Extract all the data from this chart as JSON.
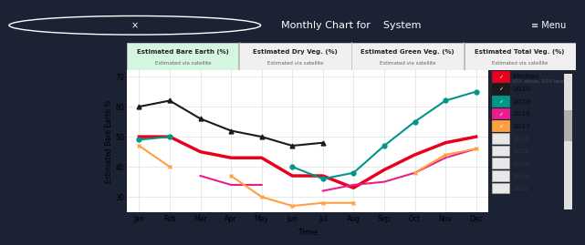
{
  "title": "Monthly Chart for    System",
  "menu_text": "≡ Menu",
  "tabs": [
    {
      "label": "Estimated Bare Earth (%)",
      "sub": "Estimated via satellite",
      "active": true
    },
    {
      "label": "Estimated Dry Veg. (%)",
      "sub": "Estimated via satellite",
      "active": false
    },
    {
      "label": "Estimated Green Veg. (%)",
      "sub": "Estimated via satellite",
      "active": false
    },
    {
      "label": "Estimated Total Veg. (%)",
      "sub": "Estimated via satellite",
      "active": false
    }
  ],
  "ylabel": "Estimated Bare Earth %",
  "xlabel": "Time",
  "months": [
    "Jan",
    "Feb",
    "Mar",
    "Apr",
    "May",
    "Jun",
    "Jul",
    "Aug",
    "Sep",
    "Oct",
    "Nov",
    "Dec"
  ],
  "ylim": [
    25,
    72
  ],
  "yticks": [
    30,
    40,
    50,
    60,
    70
  ],
  "series": [
    {
      "name": "Median",
      "name2": "50% above, 50% below",
      "color": "#e8001c",
      "linewidth": 2.5,
      "marker": null,
      "values": [
        50,
        50,
        45,
        43,
        43,
        37,
        37,
        33,
        39,
        44,
        48,
        50
      ]
    },
    {
      "name": "2020",
      "name2": "",
      "color": "#1a1a1a",
      "linewidth": 1.5,
      "marker": "^",
      "values": [
        60,
        62,
        56,
        52,
        50,
        47,
        48,
        null,
        null,
        null,
        null,
        null
      ]
    },
    {
      "name": "2019",
      "name2": "",
      "color": "#009688",
      "linewidth": 1.5,
      "marker": "o",
      "values": [
        49,
        50,
        null,
        null,
        null,
        40,
        36,
        38,
        47,
        55,
        62,
        65
      ]
    },
    {
      "name": "2018",
      "name2": "",
      "color": "#e91e8c",
      "linewidth": 1.5,
      "marker": null,
      "values": [
        null,
        null,
        37,
        34,
        34,
        null,
        32,
        34,
        35,
        38,
        43,
        46
      ]
    },
    {
      "name": "2017",
      "name2": "",
      "color": "#ffa040",
      "linewidth": 1.5,
      "marker": "x",
      "values": [
        47,
        40,
        null,
        37,
        30,
        27,
        28,
        28,
        null,
        38,
        44,
        46
      ]
    }
  ],
  "legend_years_unchecked": [
    "2016",
    "2015",
    "2014",
    "2013",
    "2012"
  ],
  "header_bg": "#1a2234",
  "tab_active_bg": "#d4f5e0",
  "tab_inactive_bg": "#f0f0f0",
  "chart_bg": "#ffffff",
  "grid_color": "#e0e0e0",
  "legend_bg": "#f0f0f0"
}
